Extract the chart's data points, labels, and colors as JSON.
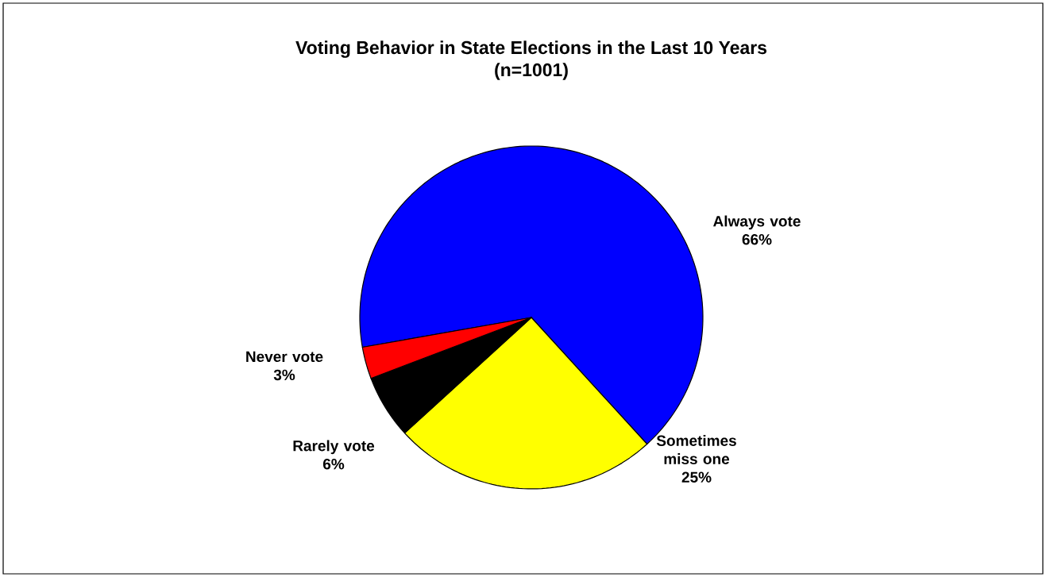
{
  "chart_data": {
    "type": "pie",
    "title": "Voting Behavior in State Elections in the Last 10 Years",
    "subtitle": "(n=1001)",
    "categories": [
      "Always vote",
      "Sometimes miss one",
      "Rarely vote",
      "Never vote"
    ],
    "values": [
      66,
      25,
      6,
      3
    ],
    "colors": [
      "#0000ff",
      "#ffff00",
      "#000000",
      "#ff0000"
    ],
    "value_labels": [
      "66%",
      "25%",
      "6%",
      "3%"
    ]
  }
}
